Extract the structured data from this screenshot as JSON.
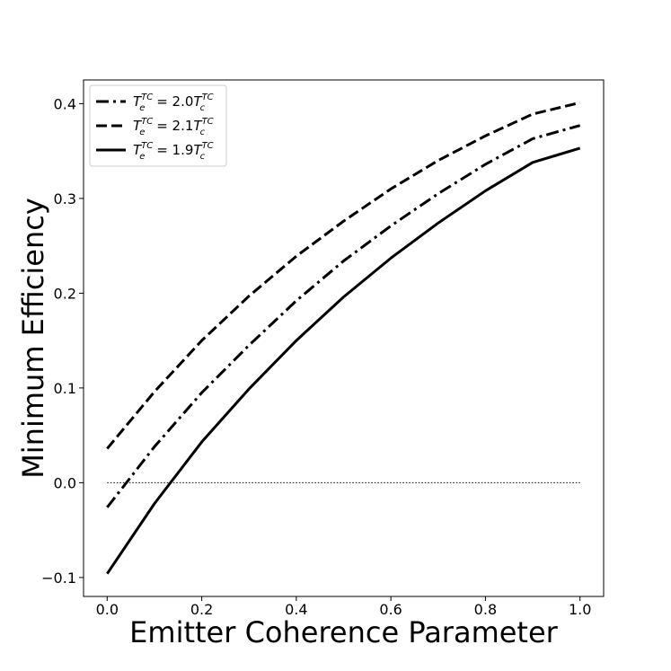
{
  "chart_data": {
    "type": "line",
    "title": "",
    "xlabel": "Emitter Coherence Parameter",
    "ylabel": "Minimum Efficiency",
    "xlim": [
      -0.05,
      1.05
    ],
    "ylim": [
      -0.12,
      0.425
    ],
    "xticks": [
      0.0,
      0.2,
      0.4,
      0.6,
      0.8,
      1.0
    ],
    "xtick_labels": [
      "0.0",
      "0.2",
      "0.4",
      "0.6",
      "0.8",
      "1.0"
    ],
    "yticks": [
      -0.1,
      0.0,
      0.1,
      0.2,
      0.3,
      0.4
    ],
    "ytick_labels": [
      "−0.1",
      "0.0",
      "0.1",
      "0.2",
      "0.3",
      "0.4"
    ],
    "grid": false,
    "legend_position": "top-left",
    "x": [
      0.0,
      0.1,
      0.2,
      0.3,
      0.4,
      0.5,
      0.6,
      0.7,
      0.8,
      0.9,
      1.0
    ],
    "series": [
      {
        "name": "T_e^TC = 2.0 T_c^TC",
        "legend": {
          "base1": "T",
          "sup1": "TC",
          "sub1": "e",
          "mid": " = 2.0",
          "base2": "T",
          "sup2": "TC",
          "sub2": "c"
        },
        "style": "dashdot",
        "values": [
          -0.026,
          0.038,
          0.095,
          0.145,
          0.192,
          0.234,
          0.271,
          0.305,
          0.336,
          0.363,
          0.377
        ]
      },
      {
        "name": "T_e^TC = 2.1 T_c^TC",
        "legend": {
          "base1": "T",
          "sup1": "TC",
          "sub1": "e",
          "mid": " = 2.1",
          "base2": "T",
          "sup2": "TC",
          "sub2": "c"
        },
        "style": "dashed",
        "values": [
          0.036,
          0.096,
          0.15,
          0.197,
          0.239,
          0.276,
          0.31,
          0.34,
          0.366,
          0.389,
          0.401
        ]
      },
      {
        "name": "T_e^TC = 1.9 T_c^TC",
        "legend": {
          "base1": "T",
          "sup1": "TC",
          "sub1": "e",
          "mid": " = 1.9",
          "base2": "T",
          "sup2": "TC",
          "sub2": "c"
        },
        "style": "solid",
        "values": [
          -0.096,
          -0.022,
          0.043,
          0.099,
          0.15,
          0.196,
          0.237,
          0.274,
          0.308,
          0.338,
          0.353
        ]
      }
    ],
    "reference_line": {
      "y": 0.0,
      "x_start": 0.0,
      "x_end": 1.0,
      "style": "dotted"
    }
  }
}
